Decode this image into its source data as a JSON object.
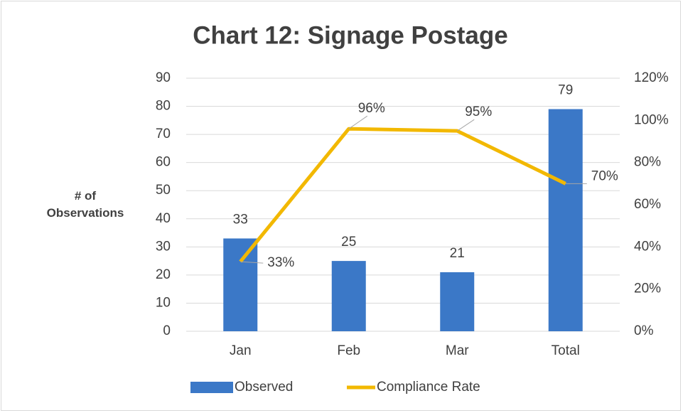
{
  "chart_data": {
    "type": "bar+line",
    "title": "Chart 12: Signage Postage",
    "ylabel": "# of Observations",
    "categories": [
      "Jan",
      "Feb",
      "Mar",
      "Total"
    ],
    "series": [
      {
        "name": "Observed",
        "type": "bar",
        "color": "#3b78c7",
        "values": [
          33,
          25,
          21,
          79
        ]
      },
      {
        "name": "Compliance Rate",
        "type": "line",
        "axis": "y2",
        "color": "#f2b800",
        "values": [
          33,
          96,
          95,
          70
        ],
        "value_labels": [
          "33%",
          "96%",
          "95%",
          "70%"
        ]
      }
    ],
    "ylim": [
      0,
      90
    ],
    "yticks": [
      0,
      10,
      20,
      30,
      40,
      50,
      60,
      70,
      80,
      90
    ],
    "y2lim": [
      0,
      120
    ],
    "y2ticks": [
      {
        "value": 0,
        "label": "0%"
      },
      {
        "value": 20,
        "label": "20%"
      },
      {
        "value": 40,
        "label": "40%"
      },
      {
        "value": 60,
        "label": "60%"
      },
      {
        "value": 80,
        "label": "80%"
      },
      {
        "value": 100,
        "label": "100%"
      },
      {
        "value": 120,
        "label": "120%"
      }
    ],
    "grid": true,
    "legend": "bottom"
  }
}
